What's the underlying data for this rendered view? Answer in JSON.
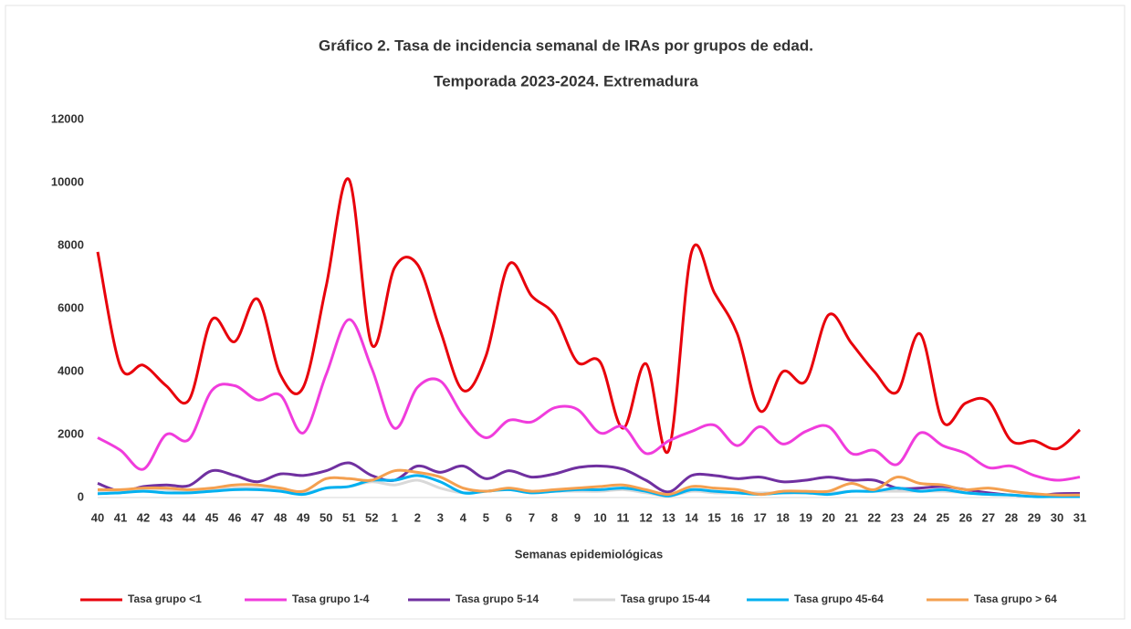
{
  "chart_data": {
    "type": "line",
    "title": "Gráfico 2. Tasa de incidencia semanal de IRAs por grupos de edad.",
    "subtitle": "Temporada 2023-2024. Extremadura",
    "x_label": "Semanas epidemiológicas",
    "categories": [
      "40",
      "41",
      "42",
      "43",
      "44",
      "45",
      "46",
      "47",
      "48",
      "49",
      "50",
      "51",
      "52",
      "1",
      "2",
      "3",
      "4",
      "5",
      "6",
      "7",
      "8",
      "9",
      "10",
      "11",
      "12",
      "13",
      "14",
      "15",
      "16",
      "17",
      "18",
      "19",
      "20",
      "21",
      "22",
      "23",
      "24",
      "25",
      "26",
      "27",
      "28",
      "29",
      "30",
      "31"
    ],
    "ylim": [
      0,
      12000
    ],
    "yticks": [
      0,
      2000,
      4000,
      6000,
      8000,
      10000,
      12000
    ],
    "grid": false,
    "smooth": true,
    "legend": "bottom",
    "series": [
      {
        "name": "Tasa grupo <1",
        "color": "#e8000b",
        "values": [
          7800,
          4150,
          4200,
          3550,
          3100,
          5650,
          4950,
          6300,
          3900,
          3500,
          6700,
          10100,
          4850,
          7300,
          7400,
          5300,
          3400,
          4500,
          7400,
          6400,
          5800,
          4300,
          4300,
          2200,
          4250,
          1500,
          7800,
          6500,
          5200,
          2750,
          4000,
          3700,
          5800,
          4900,
          4000,
          3350,
          5200,
          2400,
          3000,
          3050,
          1800,
          1800,
          1550,
          2150
        ]
      },
      {
        "name": "Tasa grupo 1-4",
        "color": "#f03cdc",
        "values": [
          1900,
          1500,
          900,
          2000,
          1850,
          3400,
          3550,
          3100,
          3250,
          2050,
          3900,
          5650,
          4100,
          2200,
          3500,
          3700,
          2600,
          1900,
          2450,
          2400,
          2850,
          2800,
          2050,
          2250,
          1400,
          1800,
          2100,
          2300,
          1650,
          2250,
          1700,
          2100,
          2250,
          1400,
          1500,
          1050,
          2050,
          1650,
          1400,
          950,
          1000,
          700,
          550,
          650
        ]
      },
      {
        "name": "Tasa grupo 5-14",
        "color": "#7030a0",
        "values": [
          450,
          200,
          350,
          400,
          380,
          850,
          700,
          500,
          750,
          700,
          850,
          1100,
          700,
          550,
          1000,
          800,
          1000,
          600,
          850,
          650,
          750,
          950,
          1000,
          900,
          550,
          180,
          700,
          700,
          600,
          650,
          500,
          550,
          650,
          550,
          550,
          300,
          300,
          350,
          250,
          150,
          80,
          50,
          120,
          130
        ]
      },
      {
        "name": "Tasa grupo 15-44",
        "color": "#d9d9d9",
        "values": [
          200,
          200,
          250,
          250,
          200,
          250,
          300,
          300,
          250,
          150,
          300,
          350,
          500,
          400,
          550,
          300,
          150,
          200,
          250,
          150,
          200,
          200,
          200,
          250,
          150,
          50,
          200,
          150,
          150,
          150,
          150,
          150,
          150,
          200,
          200,
          200,
          200,
          200,
          150,
          100,
          80,
          50,
          50,
          50
        ]
      },
      {
        "name": "Tasa grupo 45-64",
        "color": "#00b0f0",
        "values": [
          120,
          150,
          200,
          150,
          150,
          200,
          250,
          250,
          200,
          100,
          300,
          350,
          550,
          550,
          700,
          500,
          150,
          200,
          250,
          150,
          200,
          250,
          250,
          300,
          200,
          50,
          250,
          200,
          150,
          100,
          150,
          150,
          100,
          200,
          200,
          300,
          200,
          250,
          150,
          100,
          80,
          30,
          30,
          30
        ]
      },
      {
        "name": "Tasa grupo > 64",
        "color": "#f4a050",
        "values": [
          250,
          250,
          300,
          300,
          250,
          300,
          400,
          400,
          300,
          200,
          600,
          600,
          550,
          850,
          800,
          650,
          300,
          200,
          300,
          200,
          250,
          300,
          350,
          400,
          250,
          100,
          350,
          300,
          250,
          100,
          200,
          200,
          200,
          450,
          250,
          650,
          450,
          400,
          250,
          300,
          200,
          120,
          80,
          80
        ]
      }
    ]
  }
}
